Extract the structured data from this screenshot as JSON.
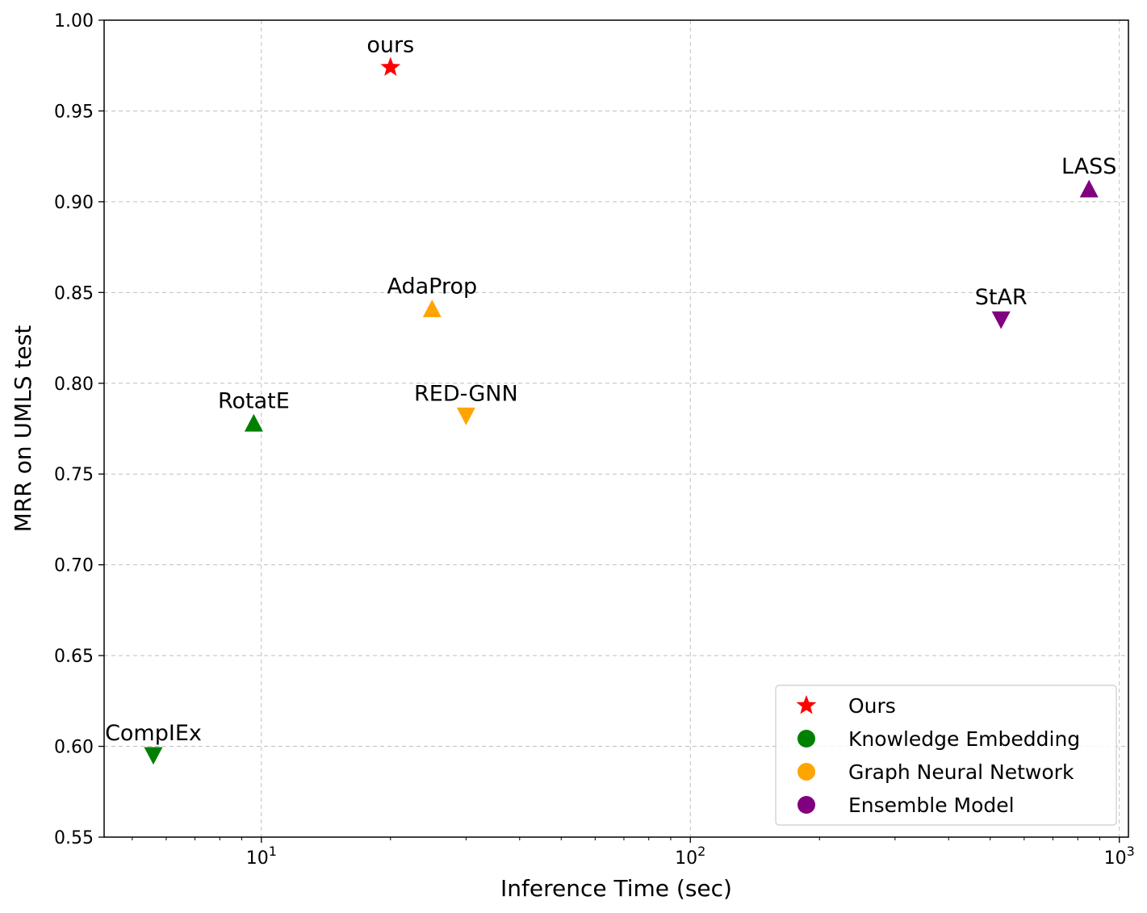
{
  "chart_data": {
    "type": "scatter",
    "xscale": "log",
    "xlabel": "Inference Time (sec)",
    "ylabel": "MRR on UMLS test",
    "xlim": [
      4.3,
      1050
    ],
    "ylim": [
      0.55,
      1.0
    ],
    "grid": true,
    "legend_position": "lower-right",
    "y_ticks": [
      "0.55",
      "0.60",
      "0.65",
      "0.70",
      "0.75",
      "0.80",
      "0.85",
      "0.90",
      "0.95",
      "1.00"
    ],
    "x_ticks": [
      {
        "value": 10,
        "base": "10",
        "exp": "1"
      },
      {
        "value": 100,
        "base": "10",
        "exp": "2"
      },
      {
        "value": 1000,
        "base": "10",
        "exp": "3"
      }
    ],
    "points": [
      {
        "label": "ours",
        "x": 20,
        "y": 0.974,
        "marker": "star",
        "group": "Ours"
      },
      {
        "label": "RotatE",
        "x": 9.6,
        "y": 0.778,
        "marker": "triangle-up",
        "group": "Knowledge Embedding"
      },
      {
        "label": "CompIEx",
        "x": 5.6,
        "y": 0.595,
        "marker": "triangle-down",
        "group": "Knowledge Embedding"
      },
      {
        "label": "AdaProp",
        "x": 25,
        "y": 0.841,
        "marker": "triangle-up",
        "group": "Graph Neural Network"
      },
      {
        "label": "RED-GNN",
        "x": 30,
        "y": 0.782,
        "marker": "triangle-down",
        "group": "Graph Neural Network"
      },
      {
        "label": "StAR",
        "x": 530,
        "y": 0.835,
        "marker": "triangle-down",
        "group": "Ensemble Model"
      },
      {
        "label": "LASS",
        "x": 850,
        "y": 0.907,
        "marker": "triangle-up",
        "group": "Ensemble Model"
      }
    ],
    "legend": [
      {
        "label": "Ours",
        "marker": "star",
        "color": "#ff0000"
      },
      {
        "label": "Knowledge Embedding",
        "marker": "circle",
        "color": "#008000"
      },
      {
        "label": "Graph Neural Network",
        "marker": "circle",
        "color": "#ffa500"
      },
      {
        "label": "Ensemble Model",
        "marker": "circle",
        "color": "#800080"
      }
    ],
    "group_colors": {
      "Ours": "#ff0000",
      "Knowledge Embedding": "#008000",
      "Graph Neural Network": "#ffa500",
      "Ensemble Model": "#800080"
    }
  }
}
